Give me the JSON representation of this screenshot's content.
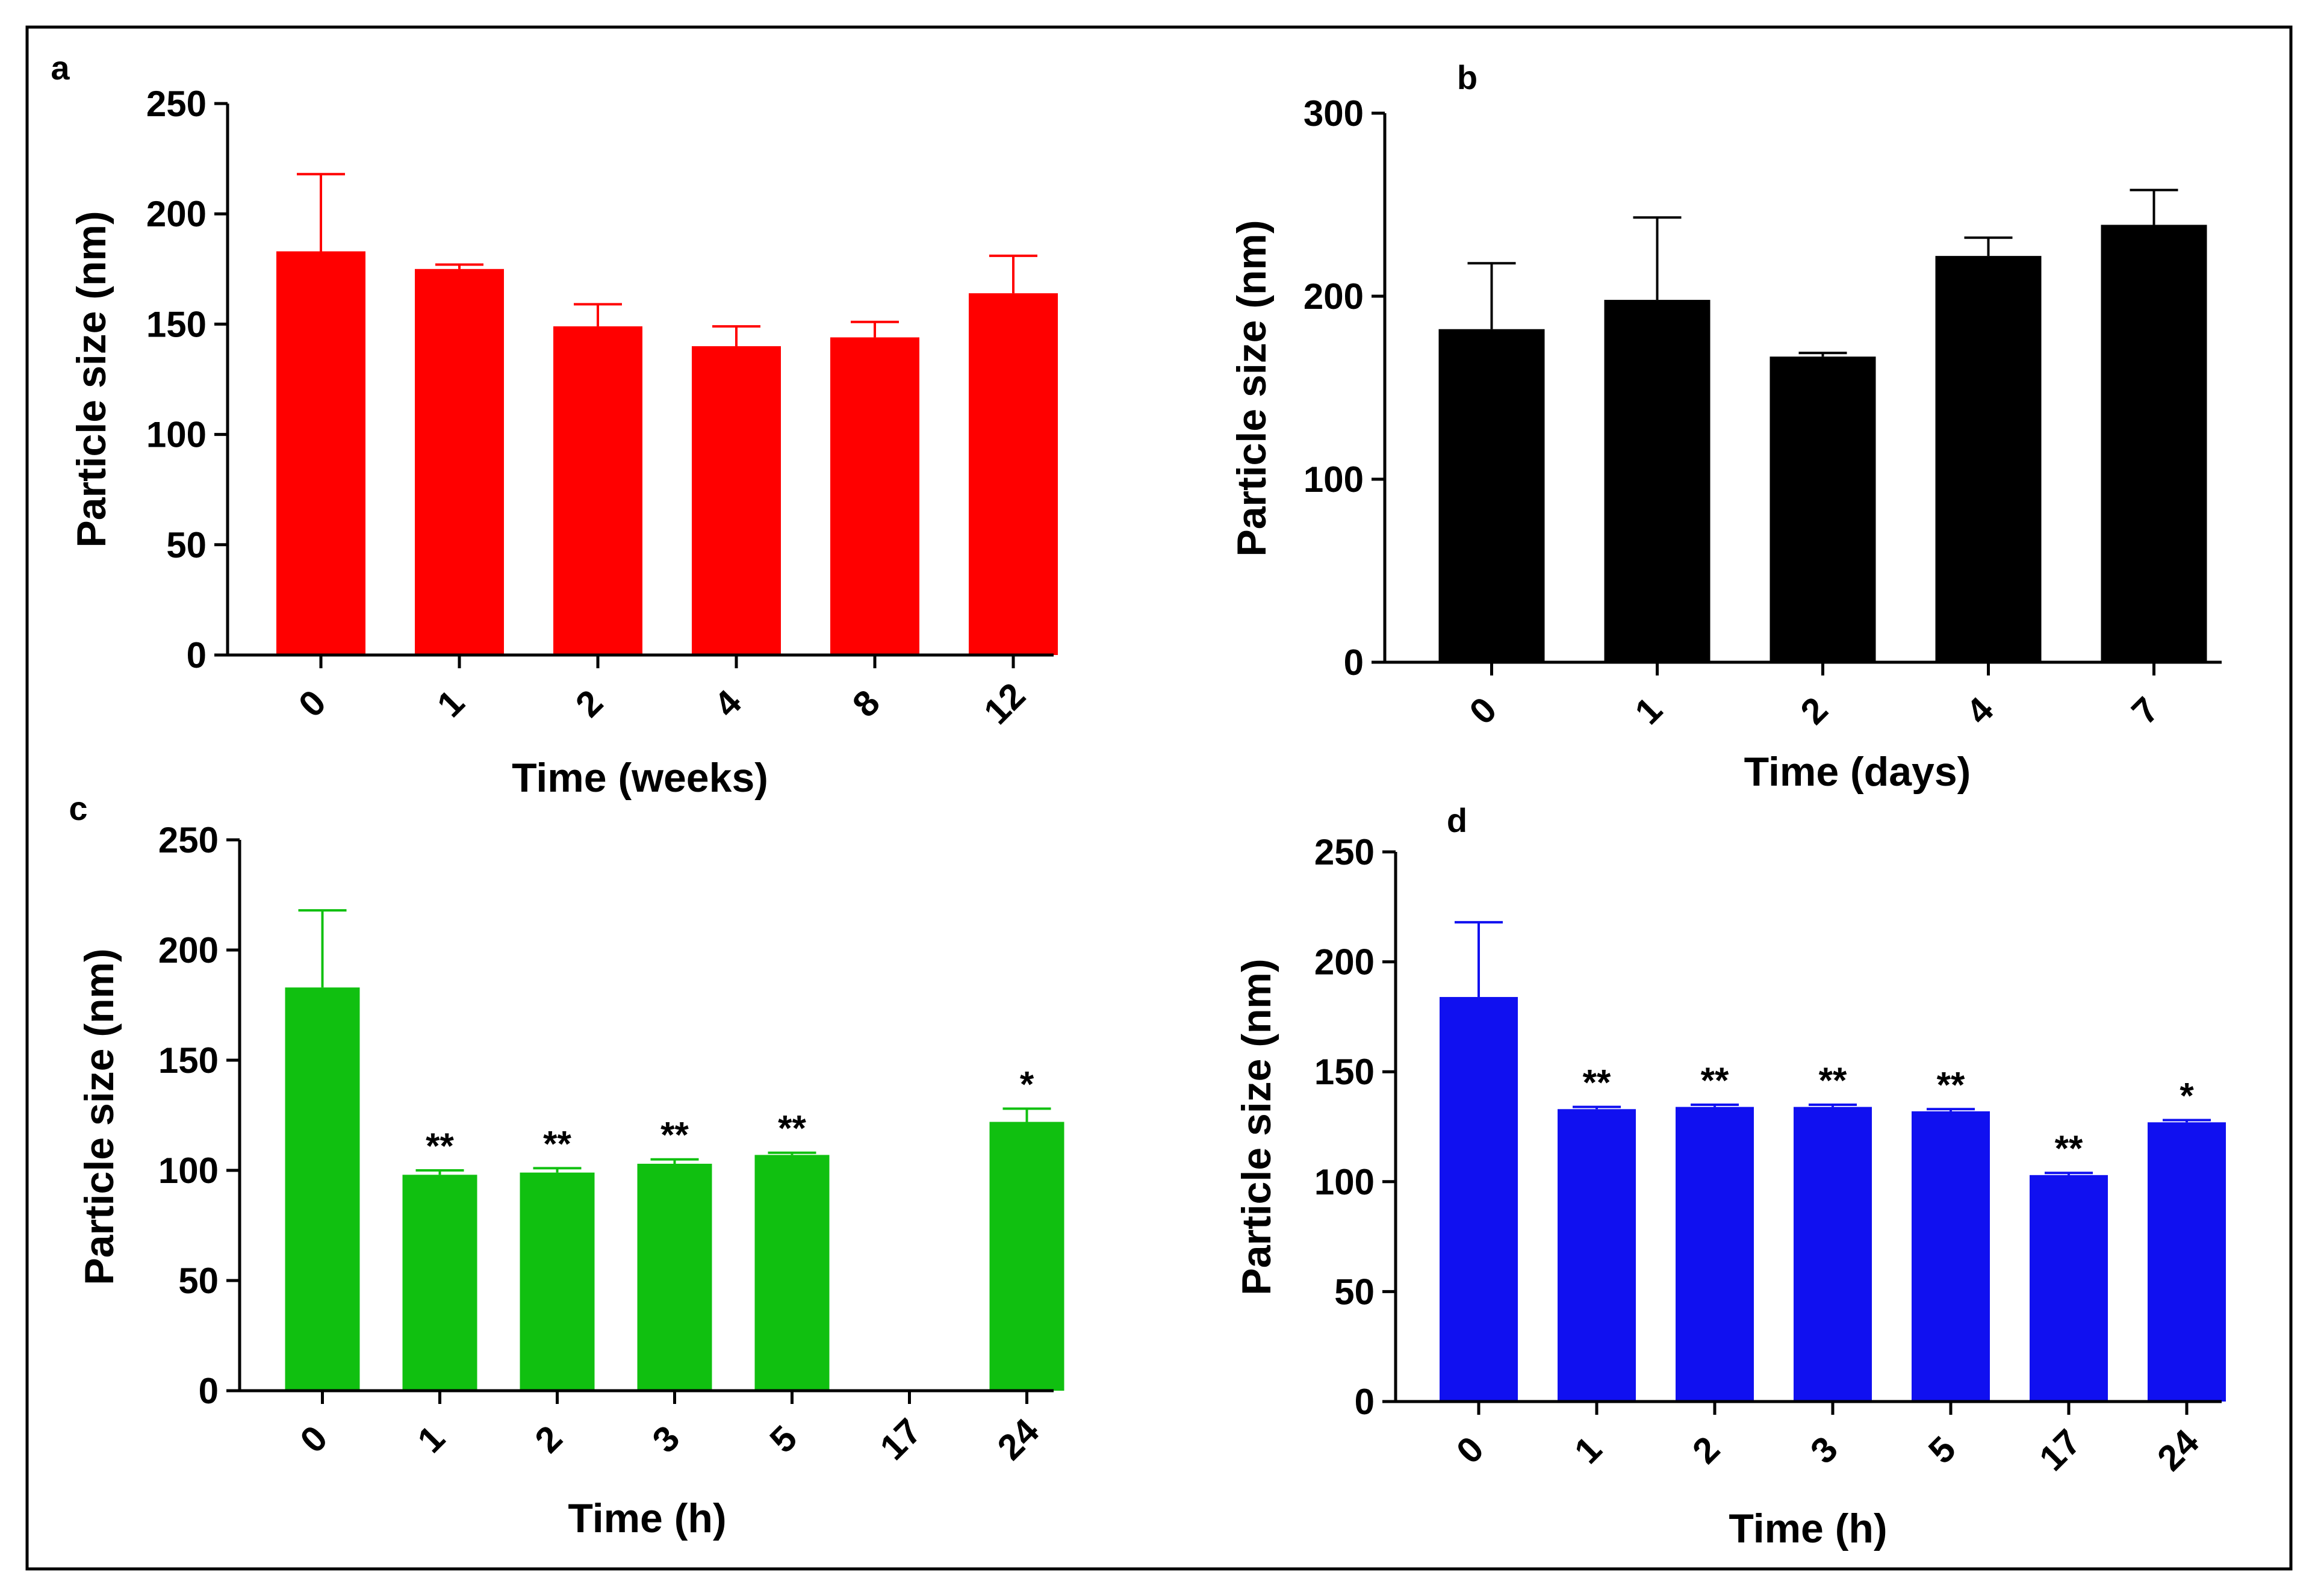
{
  "chart_data": [
    {
      "type": "bar",
      "panel": "a",
      "color": "#ff0000",
      "categories": [
        "0",
        "1",
        "2",
        "4",
        "8",
        "12"
      ],
      "values": [
        183,
        175,
        149,
        140,
        144,
        164
      ],
      "errors": [
        35,
        2,
        10,
        9,
        7,
        17
      ],
      "significance": [
        "",
        "",
        "",
        "",
        "",
        ""
      ],
      "xlabel": "Time (weeks)",
      "ylabel": "Particle size (nm)",
      "ylim": [
        0,
        250
      ],
      "yticks": [
        "0",
        "50",
        "100",
        "150",
        "200",
        "250"
      ],
      "ytick_values": [
        0,
        50,
        100,
        150,
        200,
        250
      ]
    },
    {
      "type": "bar",
      "panel": "b",
      "color": "#000000",
      "categories": [
        "0",
        "1",
        "2",
        "4",
        "7"
      ],
      "values": [
        182,
        198,
        167,
        222,
        239
      ],
      "errors": [
        36,
        45,
        2,
        10,
        19
      ],
      "significance": [
        "",
        "",
        "",
        "",
        ""
      ],
      "xlabel": "Time (days)",
      "ylabel": "Particle size (nm)",
      "ylim": [
        0,
        300
      ],
      "yticks": [
        "0",
        "100",
        "200",
        "300"
      ],
      "ytick_values": [
        0,
        100,
        200,
        300
      ]
    },
    {
      "type": "bar",
      "panel": "c",
      "color": "#10c010",
      "categories": [
        "0",
        "1",
        "2",
        "3",
        "5",
        "17",
        "24"
      ],
      "values": [
        183,
        98,
        99,
        103,
        107,
        null,
        122
      ],
      "errors": [
        35,
        2,
        2,
        2,
        1,
        null,
        6
      ],
      "significance": [
        "",
        "**",
        "**",
        "**",
        "**",
        "",
        "*"
      ],
      "xlabel": "Time (h)",
      "ylabel": "Particle size (nm)",
      "ylim": [
        0,
        250
      ],
      "yticks": [
        "0",
        "50",
        "100",
        "150",
        "200",
        "250"
      ],
      "ytick_values": [
        0,
        50,
        100,
        150,
        200,
        250
      ]
    },
    {
      "type": "bar",
      "panel": "d",
      "color": "#1010f0",
      "categories": [
        "0",
        "1",
        "2",
        "3",
        "5",
        "17",
        "24"
      ],
      "values": [
        184,
        133,
        134,
        134,
        132,
        103,
        127
      ],
      "errors": [
        34,
        1,
        1,
        1,
        1,
        1,
        1
      ],
      "significance": [
        "",
        "**",
        "**",
        "**",
        "**",
        "**",
        "*"
      ],
      "xlabel": "Time (h)",
      "ylabel": "Particle size (nm)",
      "ylim": [
        0,
        250
      ],
      "yticks": [
        "0",
        "50",
        "100",
        "150",
        "200",
        "250"
      ],
      "ytick_values": [
        0,
        50,
        100,
        150,
        200,
        250
      ]
    }
  ]
}
